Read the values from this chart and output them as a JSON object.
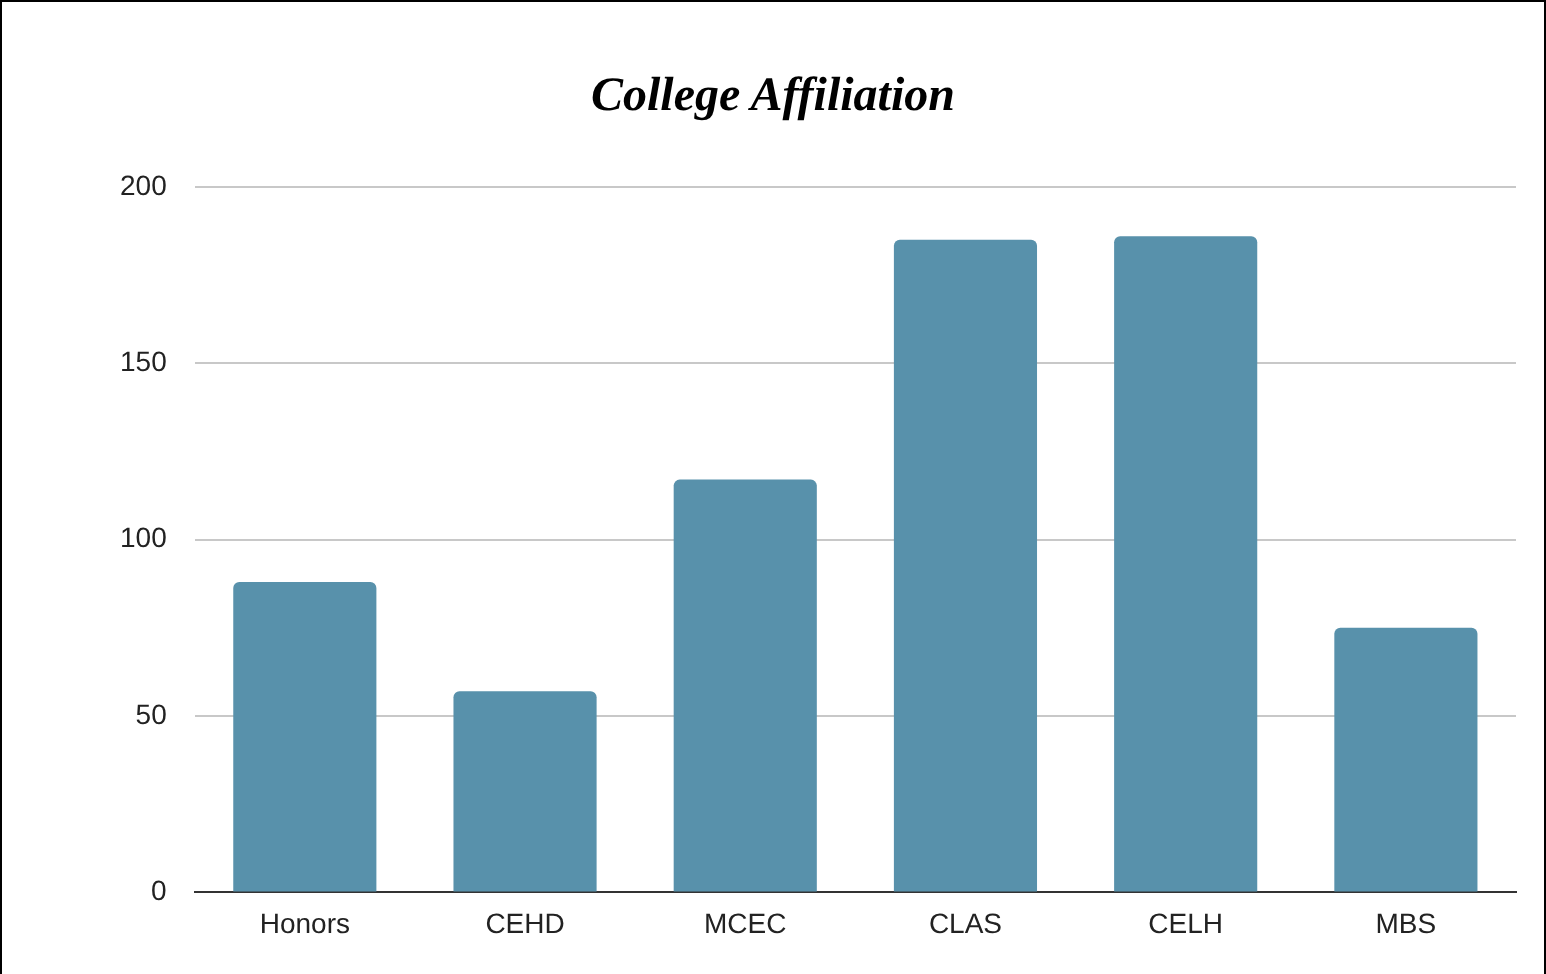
{
  "chart_data": {
    "type": "bar",
    "title": "College Affiliation",
    "categories": [
      "Honors",
      "CEHD",
      "MCEC",
      "CLAS",
      "CELH",
      "MBS"
    ],
    "values": [
      88,
      57,
      117,
      185,
      186,
      75
    ],
    "color": "#5891ab",
    "ylim": [
      0,
      200
    ],
    "yticks": [
      0,
      50,
      100,
      150,
      200
    ],
    "grid": "y"
  }
}
